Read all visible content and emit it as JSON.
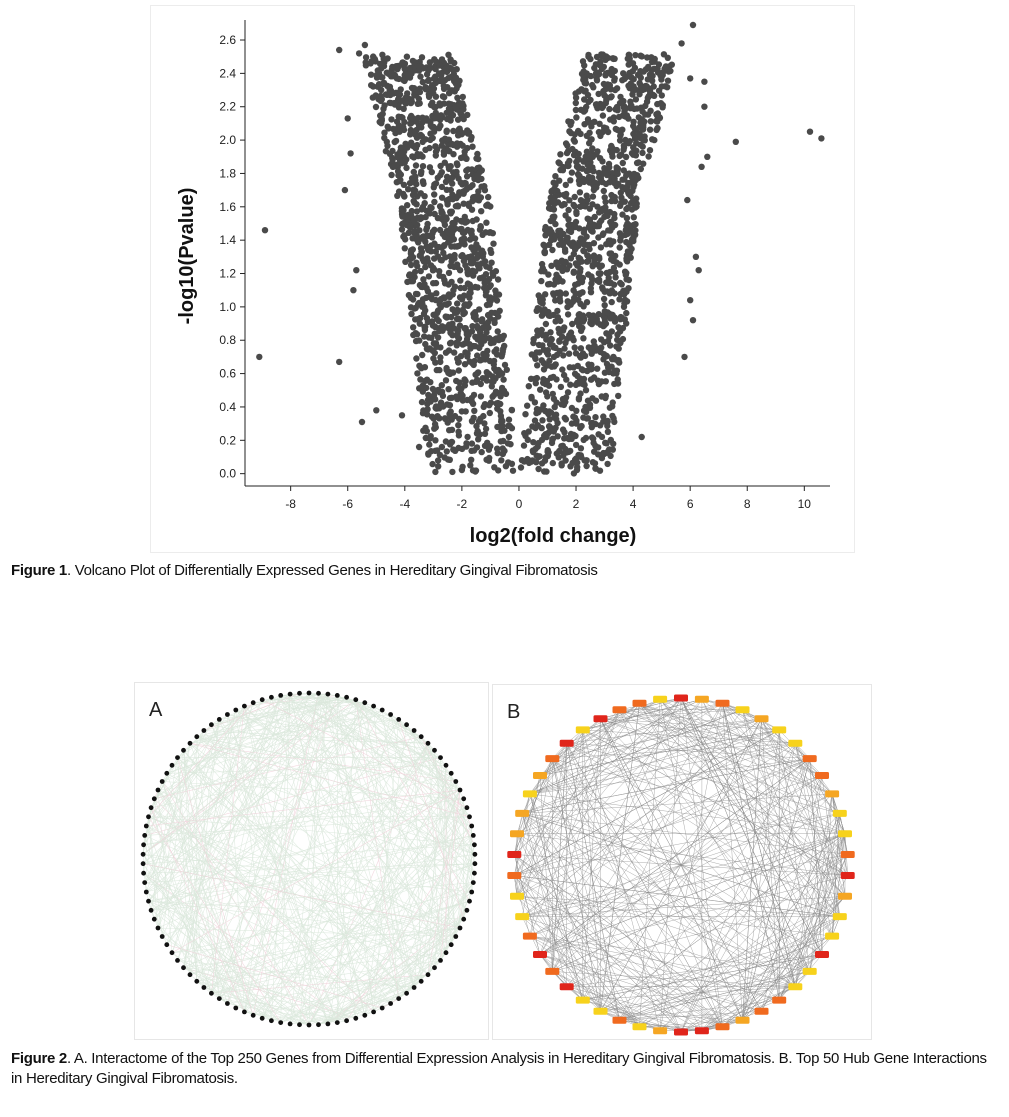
{
  "figure1": {
    "caption_lead": "Figure 1",
    "caption_text": ". Volcano Plot of Differentially Expressed Genes in Hereditary Gingival Fibromatosis"
  },
  "figure2": {
    "caption_lead": "Figure 2",
    "caption_text": ". A. Interactome of the Top 250 Genes from Differential Expression Analysis in Hereditary Gingival Fibromatosis. B. Top 50 Hub Gene Interactions in Hereditary Gingival Fibromatosis.",
    "panel_a_label": "A",
    "panel_b_label": "B"
  },
  "chart_data": {
    "type": "scatter",
    "title": "",
    "xlabel": "log2(fold change)",
    "ylabel": "-log10(Pvalue)",
    "xlim": [
      -9.6,
      10.9
    ],
    "ylim": [
      -0.05,
      2.72
    ],
    "xticks": [
      -8,
      -6,
      -4,
      -2,
      0,
      2,
      4,
      6,
      8,
      10
    ],
    "yticks": [
      0.0,
      0.2,
      0.4,
      0.6,
      0.8,
      1.0,
      1.2,
      1.4,
      1.6,
      1.8,
      2.0,
      2.2,
      2.4,
      2.6
    ],
    "grid": false,
    "legend": "none",
    "point_color": "#4a4a4a",
    "series": [
      {
        "points": [
          [
            -9.1,
            0.7
          ],
          [
            -8.9,
            1.46
          ],
          [
            -6.3,
            0.67
          ],
          [
            -6.3,
            2.54
          ],
          [
            -6.1,
            1.7
          ],
          [
            -6.0,
            2.13
          ],
          [
            -5.9,
            1.92
          ],
          [
            -5.8,
            1.1
          ],
          [
            -5.7,
            1.22
          ],
          [
            -5.6,
            2.52
          ],
          [
            -5.5,
            0.31
          ],
          [
            -5.4,
            2.57
          ],
          [
            -5.2,
            2.46
          ],
          [
            -5.0,
            0.38
          ],
          [
            -4.9,
            2.4
          ],
          [
            -4.1,
            0.35
          ],
          [
            -3.5,
            0.16
          ],
          [
            -2.7,
            0.16
          ],
          [
            6.1,
            2.69
          ],
          [
            6.0,
            2.37
          ],
          [
            6.3,
            1.22
          ],
          [
            6.4,
            1.84
          ],
          [
            6.5,
            2.35
          ],
          [
            6.6,
            1.9
          ],
          [
            6.5,
            2.2
          ],
          [
            7.6,
            1.99
          ],
          [
            10.2,
            2.05
          ],
          [
            10.6,
            2.01
          ],
          [
            6.1,
            0.92
          ],
          [
            6.0,
            1.04
          ],
          [
            5.8,
            0.7
          ],
          [
            5.7,
            2.58
          ],
          [
            5.9,
            1.64
          ],
          [
            6.2,
            1.3
          ],
          [
            4.3,
            0.22
          ],
          [
            2.0,
            0.09
          ]
        ]
      }
    ],
    "dense_region": "symmetric V-shape: points concentrated between |x| from 0 to ~6, -log10(Pvalue) rising with |log2(fold change)|, roughly 2500 genes"
  },
  "network": {
    "panel_a_nodes": 110,
    "panel_b_nodes": 50,
    "node_color": "#111111",
    "edge_color_a": "#dbe8dc",
    "edge_color_b": "#8a8a8a",
    "hub_colors": [
      "#e0251b",
      "#f06a1f",
      "#f5a623",
      "#f7d21c"
    ]
  }
}
